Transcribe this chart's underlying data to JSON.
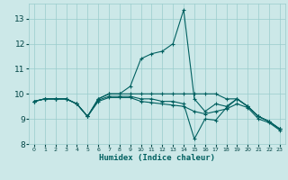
{
  "title": "",
  "xlabel": "Humidex (Indice chaleur)",
  "ylabel": "",
  "xlim": [
    -0.5,
    23.5
  ],
  "ylim": [
    8,
    13.6
  ],
  "yticks": [
    8,
    9,
    10,
    11,
    12,
    13
  ],
  "xticks": [
    0,
    1,
    2,
    3,
    4,
    5,
    6,
    7,
    8,
    9,
    10,
    11,
    12,
    13,
    14,
    15,
    16,
    17,
    18,
    19,
    20,
    21,
    22,
    23
  ],
  "bg_color": "#cce8e8",
  "grid_color": "#99cccc",
  "line_color": "#006060",
  "lines": [
    {
      "x": [
        0,
        1,
        2,
        3,
        4,
        5,
        6,
        7,
        8,
        9,
        10,
        11,
        12,
        13,
        14,
        15,
        16,
        17,
        18,
        19,
        20,
        21,
        22,
        23
      ],
      "y": [
        9.7,
        9.8,
        9.8,
        9.8,
        9.6,
        9.1,
        9.8,
        10.0,
        10.0,
        10.3,
        11.4,
        11.6,
        11.7,
        12.0,
        13.35,
        9.8,
        9.3,
        9.6,
        9.5,
        9.8,
        9.5,
        9.1,
        8.9,
        8.6
      ]
    },
    {
      "x": [
        0,
        1,
        2,
        3,
        4,
        5,
        6,
        7,
        8,
        9,
        10,
        11,
        12,
        13,
        14,
        15,
        16,
        17,
        18,
        19,
        20,
        21,
        22,
        23
      ],
      "y": [
        9.7,
        9.8,
        9.8,
        9.8,
        9.6,
        9.1,
        9.8,
        10.0,
        10.0,
        10.0,
        10.0,
        10.0,
        10.0,
        10.0,
        10.0,
        10.0,
        10.0,
        10.0,
        9.8,
        9.8,
        9.5,
        9.1,
        8.9,
        8.6
      ]
    },
    {
      "x": [
        0,
        1,
        2,
        3,
        4,
        5,
        6,
        7,
        8,
        9,
        10,
        11,
        12,
        13,
        14,
        15,
        16,
        17,
        18,
        19,
        20,
        21,
        22,
        23
      ],
      "y": [
        9.7,
        9.8,
        9.8,
        9.8,
        9.6,
        9.1,
        9.75,
        9.9,
        9.9,
        9.9,
        9.8,
        9.8,
        9.7,
        9.7,
        9.6,
        8.2,
        9.0,
        8.95,
        9.45,
        9.8,
        9.5,
        9.1,
        8.9,
        8.6
      ]
    },
    {
      "x": [
        0,
        1,
        2,
        3,
        4,
        5,
        6,
        7,
        8,
        9,
        10,
        11,
        12,
        13,
        14,
        15,
        16,
        17,
        18,
        19,
        20,
        21,
        22,
        23
      ],
      "y": [
        9.7,
        9.8,
        9.8,
        9.8,
        9.6,
        9.1,
        9.7,
        9.85,
        9.85,
        9.85,
        9.7,
        9.65,
        9.6,
        9.55,
        9.5,
        9.3,
        9.2,
        9.3,
        9.4,
        9.6,
        9.45,
        9.0,
        8.85,
        8.55
      ]
    }
  ]
}
